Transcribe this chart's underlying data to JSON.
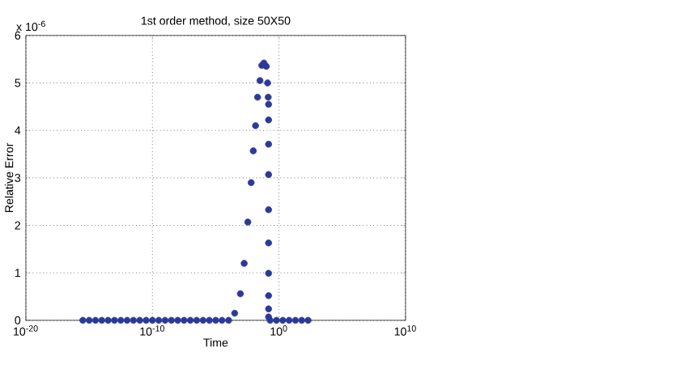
{
  "chart_data": {
    "type": "scatter",
    "title": "1st order method, size 50X50",
    "xlabel": "Time",
    "ylabel": "Relative Error",
    "annotations": [
      "x 10$^{-6}$"
    ],
    "log": "x",
    "grid": true,
    "marker": "circle",
    "xlim": [
      1e-20,
      10000000000.0
    ],
    "ylim": [
      0,
      6
    ],
    "xticks": [
      {
        "value": 1e-20,
        "label": "10$^{-20}$"
      },
      {
        "value": 1e-10,
        "label": "10$^{-10}$"
      },
      {
        "value": 1,
        "label": "10$^{0}$"
      },
      {
        "value": 10000000000.0,
        "label": "10$^{10}$"
      }
    ],
    "yticks": [
      0,
      1,
      2,
      3,
      4,
      5,
      6
    ],
    "series": [
      {
        "color": "#2b3a96",
        "x": [
          3.16e-16,
          1e-15,
          3.16e-15,
          1e-14,
          3.16e-14,
          1e-13,
          3.16e-13,
          1e-12,
          3.16e-12,
          1e-11,
          3.16e-11,
          1e-10,
          3.16e-10,
          1e-09,
          3.16e-09,
          1e-08,
          3.16e-08,
          1e-07,
          3.16e-07,
          1e-06,
          3.16e-06,
          1e-05,
          3.16e-05,
          0.000105,
          0.000316,
          0.000891,
          0.00178,
          0.00347,
          0.00631,
          0.00933,
          0.0141,
          0.0204,
          0.0316,
          0.0437,
          0.0646,
          0.1,
          0.126,
          0.141,
          0.151,
          0.151,
          0.151,
          0.151,
          0.151,
          0.151,
          0.151,
          0.151,
          0.151,
          0.151,
          0.2,
          0.631,
          2.0,
          6.31,
          20,
          63.1,
          200
        ],
        "values": [
          0,
          0,
          0,
          0,
          0,
          0,
          0,
          0,
          0,
          0,
          0,
          0,
          0,
          0,
          0,
          0,
          0,
          0,
          0,
          0,
          0,
          0,
          0,
          0,
          0.15,
          0.56,
          1.2,
          2.07,
          2.9,
          3.57,
          4.1,
          4.7,
          5.05,
          5.37,
          5.42,
          5.35,
          5.0,
          4.7,
          4.55,
          4.22,
          3.71,
          3.07,
          2.33,
          1.63,
          0.99,
          0.52,
          0.24,
          0.07,
          0,
          0,
          0,
          0,
          0,
          0,
          0
        ]
      }
    ]
  }
}
